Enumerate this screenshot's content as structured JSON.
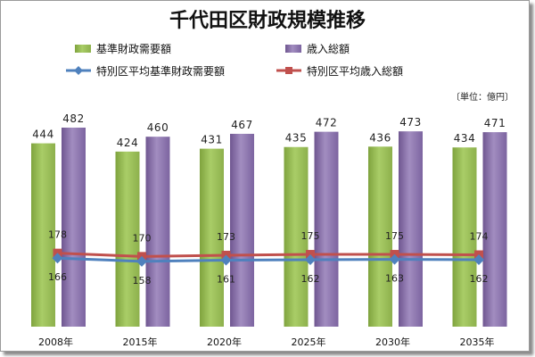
{
  "chart_data": {
    "type": "bar",
    "title": "千代田区財政規模推移",
    "unit_note": "〔単位：億円〕",
    "categories": [
      "2008年",
      "2015年",
      "2020年",
      "2025年",
      "2030年",
      "2035年"
    ],
    "series": [
      {
        "name": "基準財政需要額",
        "kind": "bar",
        "color": "#9bbb59",
        "values": [
          444,
          424,
          431,
          435,
          436,
          434
        ]
      },
      {
        "name": "歳入総額",
        "kind": "bar",
        "color": "#8064a2",
        "values": [
          482,
          460,
          467,
          472,
          473,
          471
        ]
      },
      {
        "name": "特別区平均基準財政需要額",
        "kind": "line",
        "color": "#4f81bd",
        "values": [
          166,
          158,
          161,
          162,
          163,
          162
        ]
      },
      {
        "name": "特別区平均歳入総額",
        "kind": "line",
        "color": "#c0504d",
        "values": [
          178,
          170,
          173,
          175,
          175,
          174
        ]
      }
    ],
    "ylim": [
      0,
      500
    ],
    "grid": false,
    "legend_position": "top"
  }
}
